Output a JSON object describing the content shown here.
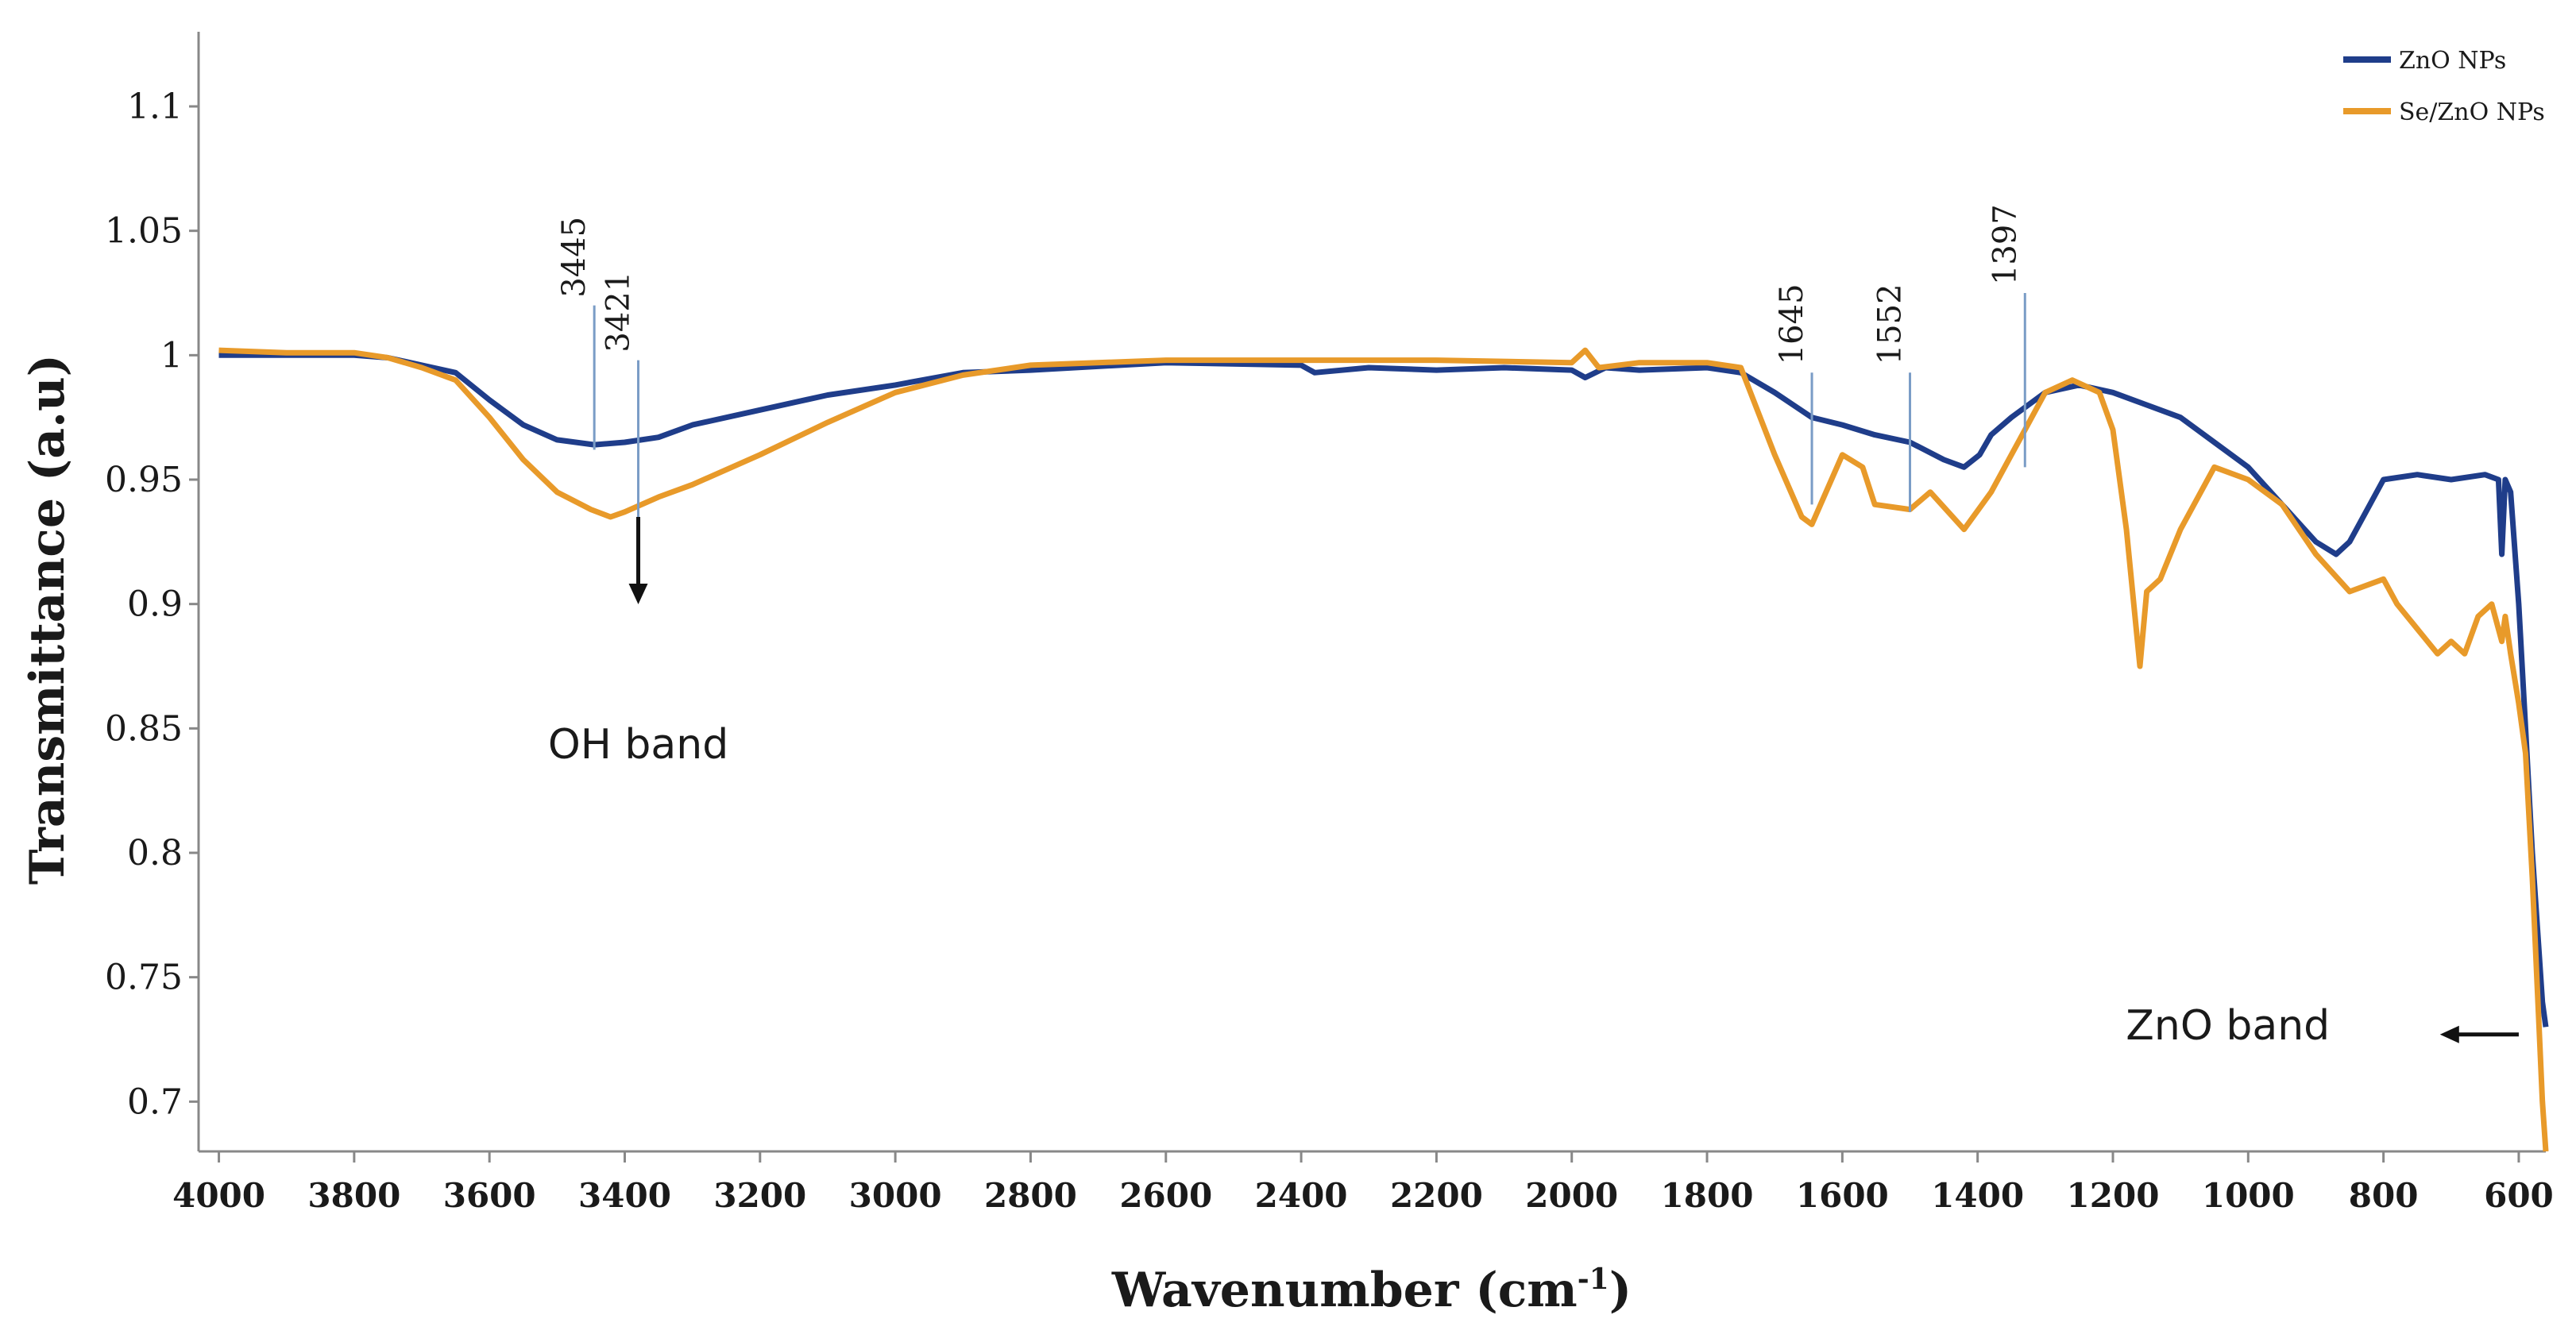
{
  "chart_data": {
    "type": "line",
    "title": "",
    "xlabel": "Wavenumber (cm",
    "xlabel_sup": "-1",
    "xlabel_close": ")",
    "ylabel": "Transmittance (a.u)",
    "xlim": [
      4030,
      560
    ],
    "ylim": [
      0.68,
      1.13
    ],
    "x_ticks": [
      "4000",
      "3800",
      "3600",
      "3400",
      "3200",
      "3000",
      "2800",
      "2600",
      "2400",
      "2200",
      "2000",
      "1800",
      "1600",
      "1400",
      "1200",
      "1000",
      "800",
      "600"
    ],
    "y_ticks": [
      "0.7",
      "0.75",
      "0.8",
      "0.85",
      "0.9",
      "0.95",
      "1",
      "1.05",
      "1.1"
    ],
    "legend": {
      "position": "top-right"
    },
    "series": [
      {
        "name": "ZnO NPs",
        "color": "#1f3d8a",
        "x": [
          4000,
          3900,
          3800,
          3750,
          3700,
          3650,
          3600,
          3550,
          3500,
          3445,
          3400,
          3350,
          3300,
          3200,
          3100,
          3000,
          2900,
          2800,
          2600,
          2400,
          2380,
          2300,
          2200,
          2100,
          2000,
          1980,
          1950,
          1900,
          1800,
          1750,
          1700,
          1645,
          1600,
          1552,
          1500,
          1450,
          1420,
          1397,
          1380,
          1350,
          1300,
          1250,
          1200,
          1150,
          1100,
          1050,
          1000,
          950,
          900,
          870,
          850,
          820,
          800,
          750,
          700,
          650,
          630,
          625,
          620,
          612,
          600,
          590,
          580,
          570,
          565,
          560
        ],
        "y": [
          1.0,
          1.0,
          1.0,
          0.999,
          0.996,
          0.993,
          0.982,
          0.972,
          0.966,
          0.964,
          0.965,
          0.967,
          0.972,
          0.978,
          0.984,
          0.988,
          0.993,
          0.994,
          0.997,
          0.996,
          0.993,
          0.995,
          0.994,
          0.995,
          0.994,
          0.991,
          0.995,
          0.994,
          0.995,
          0.993,
          0.985,
          0.975,
          0.972,
          0.968,
          0.965,
          0.958,
          0.955,
          0.96,
          0.968,
          0.975,
          0.985,
          0.988,
          0.985,
          0.98,
          0.975,
          0.965,
          0.955,
          0.94,
          0.925,
          0.92,
          0.925,
          0.94,
          0.95,
          0.952,
          0.95,
          0.952,
          0.95,
          0.92,
          0.95,
          0.945,
          0.9,
          0.85,
          0.8,
          0.76,
          0.74,
          0.73
        ]
      },
      {
        "name": "Se/ZnO NPs",
        "color": "#e89a2a",
        "x": [
          4000,
          3900,
          3800,
          3750,
          3700,
          3650,
          3600,
          3550,
          3500,
          3450,
          3421,
          3400,
          3350,
          3300,
          3200,
          3100,
          3000,
          2900,
          2800,
          2600,
          2400,
          2200,
          2000,
          1980,
          1960,
          1900,
          1800,
          1750,
          1700,
          1660,
          1645,
          1600,
          1570,
          1552,
          1500,
          1470,
          1420,
          1380,
          1350,
          1330,
          1300,
          1260,
          1220,
          1200,
          1180,
          1160,
          1150,
          1130,
          1100,
          1050,
          1000,
          950,
          900,
          850,
          800,
          780,
          750,
          720,
          700,
          680,
          660,
          640,
          625,
          620,
          612,
          600,
          590,
          580,
          570,
          565,
          560
        ],
        "y": [
          1.002,
          1.001,
          1.001,
          0.999,
          0.995,
          0.99,
          0.975,
          0.958,
          0.945,
          0.938,
          0.935,
          0.937,
          0.943,
          0.948,
          0.96,
          0.973,
          0.985,
          0.992,
          0.996,
          0.998,
          0.998,
          0.998,
          0.997,
          1.002,
          0.995,
          0.997,
          0.997,
          0.995,
          0.96,
          0.935,
          0.932,
          0.96,
          0.955,
          0.94,
          0.938,
          0.945,
          0.93,
          0.945,
          0.96,
          0.97,
          0.985,
          0.99,
          0.985,
          0.97,
          0.93,
          0.875,
          0.905,
          0.91,
          0.93,
          0.955,
          0.95,
          0.94,
          0.92,
          0.905,
          0.91,
          0.9,
          0.89,
          0.88,
          0.885,
          0.88,
          0.895,
          0.9,
          0.885,
          0.895,
          0.88,
          0.86,
          0.84,
          0.79,
          0.73,
          0.7,
          0.68
        ]
      }
    ],
    "annotations": [
      {
        "text": "3445",
        "x": 3445,
        "y_bottom": 0.962,
        "y_top": 1.02
      },
      {
        "text": "3421",
        "x": 3380,
        "y_bottom": 0.935,
        "y_top": 0.998
      },
      {
        "text": "1645",
        "x": 1645,
        "y_bottom": 0.94,
        "y_top": 0.993
      },
      {
        "text": "1552",
        "x": 1500,
        "y_bottom": 0.937,
        "y_top": 0.993
      },
      {
        "text": "1397",
        "x": 1330,
        "y_bottom": 0.955,
        "y_top": 1.025
      }
    ],
    "band_labels": {
      "oh": {
        "text": "OH band",
        "arrow_x": 3380,
        "arrow_y_from": 0.935,
        "arrow_y_to": 0.905,
        "x": 3380,
        "y": 0.838
      },
      "zno": {
        "text": "ZnO band",
        "x": 1030,
        "y": 0.725,
        "arrow_x_from": 600,
        "arrow_x_to": 700,
        "arrow_y": 0.727
      }
    }
  }
}
